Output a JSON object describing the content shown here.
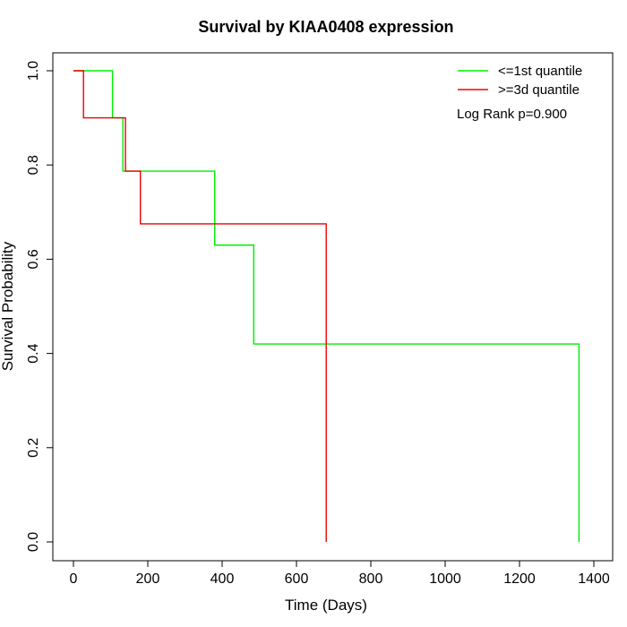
{
  "chart_data": {
    "type": "line",
    "title": "Survival by KIAA0408 expression",
    "xlabel": "Time (Days)",
    "ylabel": "Survival Probability",
    "xlim": [
      0,
      1400
    ],
    "ylim": [
      0,
      1.0
    ],
    "x_ticks": [
      0,
      200,
      400,
      600,
      800,
      1000,
      1200,
      1400
    ],
    "x_tick_labels": [
      "0",
      "200",
      "400",
      "600",
      "800",
      "1000",
      "1200",
      "1400"
    ],
    "y_ticks": [
      0.0,
      0.2,
      0.4,
      0.6,
      0.8,
      1.0
    ],
    "y_tick_labels": [
      "0.0",
      "0.2",
      "0.4",
      "0.6",
      "0.8",
      "1.0"
    ],
    "grid": false,
    "legend_position": "top-right",
    "annotation": "Log Rank p=0.900",
    "series": [
      {
        "name": "<=1st quantile",
        "color": "#00ee00",
        "step": "post",
        "x": [
          0,
          105,
          133,
          380,
          485,
          1360,
          1360
        ],
        "y": [
          1.0,
          0.9,
          0.787,
          0.63,
          0.42,
          0.42,
          0.0
        ]
      },
      {
        "name": ">=3d quantile",
        "color": "#ee0000",
        "step": "post",
        "x": [
          0,
          27,
          140,
          180,
          680,
          680
        ],
        "y": [
          1.0,
          0.9,
          0.787,
          0.675,
          0.675,
          0.0
        ]
      }
    ]
  }
}
